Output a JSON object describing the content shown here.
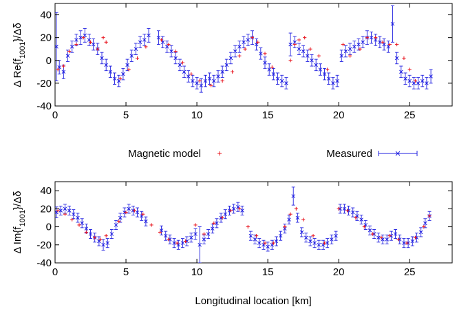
{
  "chart_data": [
    {
      "type": "scatter",
      "panel": "top",
      "ylabel_prefix": "Δ Re{f",
      "ylabel_sub": "1001",
      "ylabel_suffix": "}/Δδ",
      "xlabel": "",
      "xlim": [
        0,
        28
      ],
      "ylim": [
        -40,
        50
      ],
      "xticks": [
        "0",
        "5",
        "10",
        "15",
        "20",
        "25"
      ],
      "yticks": [
        "-40",
        "-20",
        "0",
        "20",
        "40"
      ],
      "series": [
        {
          "name": "Magnetic model",
          "color": "#e8141e",
          "marker": "plus",
          "x": [
            0.2,
            0.6,
            1.0,
            1.5,
            2.0,
            2.5,
            3.0,
            3.4,
            3.6,
            4.6,
            5.2,
            5.8,
            6.4,
            7.5,
            8.0,
            8.5,
            9.0,
            9.6,
            10.2,
            11.0,
            11.8,
            12.5,
            13.0,
            13.4,
            13.9,
            14.3,
            14.8,
            15.3,
            16.6,
            16.9,
            17.2,
            17.6,
            18.0,
            18.6,
            19.2,
            20.3,
            20.8,
            21.5,
            22.0,
            22.6,
            23.1,
            23.6,
            24.1,
            24.6,
            25.0,
            25.4
          ],
          "y": [
            -8,
            -5,
            8,
            14,
            20,
            16,
            10,
            20,
            16,
            -16,
            -8,
            2,
            12,
            18,
            14,
            8,
            -2,
            -12,
            -18,
            -22,
            -18,
            -10,
            4,
            10,
            20,
            16,
            6,
            -6,
            0,
            14,
            18,
            20,
            10,
            4,
            -8,
            14,
            4,
            10,
            20,
            20,
            16,
            14,
            14,
            2,
            -8,
            -18
          ]
        },
        {
          "name": "Measured",
          "color": "#1f1fe0",
          "marker": "cross-errorbar",
          "x": [
            0.1,
            0.3,
            0.6,
            0.9,
            1.2,
            1.5,
            1.8,
            2.1,
            2.4,
            2.7,
            3.0,
            3.3,
            3.6,
            3.9,
            4.2,
            4.5,
            4.8,
            5.1,
            5.4,
            5.7,
            6.0,
            6.3,
            6.6,
            7.3,
            7.6,
            7.9,
            8.2,
            8.5,
            8.8,
            9.1,
            9.4,
            9.7,
            10.0,
            10.3,
            10.6,
            10.9,
            11.2,
            11.5,
            11.8,
            12.1,
            12.4,
            12.7,
            13.0,
            13.3,
            13.6,
            13.9,
            14.2,
            14.5,
            14.8,
            15.1,
            15.4,
            15.7,
            16.0,
            16.3,
            16.6,
            16.9,
            17.2,
            17.5,
            17.8,
            18.1,
            18.4,
            18.7,
            19.0,
            19.3,
            19.6,
            19.9,
            20.2,
            20.5,
            20.8,
            21.1,
            21.4,
            21.7,
            22.0,
            22.3,
            22.6,
            22.9,
            23.2,
            23.5,
            23.8,
            24.1,
            24.4,
            24.7,
            25.0,
            25.3,
            25.6,
            25.9,
            26.2,
            26.5
          ],
          "y": [
            12,
            -6,
            -10,
            4,
            12,
            18,
            20,
            22,
            18,
            14,
            10,
            2,
            -4,
            -10,
            -16,
            -18,
            -12,
            -4,
            4,
            10,
            16,
            18,
            22,
            20,
            16,
            12,
            8,
            2,
            -4,
            -10,
            -14,
            -18,
            -20,
            -22,
            -18,
            -16,
            -18,
            -14,
            -10,
            -4,
            2,
            8,
            12,
            16,
            18,
            20,
            14,
            6,
            -2,
            -8,
            -12,
            -16,
            -18,
            -20,
            14,
            16,
            10,
            8,
            4,
            0,
            -4,
            -8,
            -12,
            -16,
            -20,
            -18,
            4,
            8,
            10,
            12,
            14,
            16,
            20,
            20,
            18,
            16,
            14,
            12,
            32,
            2,
            -10,
            -16,
            -18,
            -20,
            -20,
            -18,
            -20,
            -14
          ],
          "err": [
            30,
            6,
            6,
            5,
            5,
            5,
            6,
            6,
            5,
            5,
            5,
            5,
            5,
            5,
            5,
            5,
            5,
            5,
            5,
            5,
            5,
            5,
            6,
            6,
            5,
            5,
            5,
            5,
            5,
            5,
            5,
            5,
            5,
            6,
            5,
            5,
            5,
            5,
            5,
            5,
            5,
            5,
            5,
            5,
            5,
            6,
            5,
            5,
            5,
            5,
            5,
            5,
            5,
            5,
            10,
            5,
            5,
            5,
            5,
            5,
            5,
            5,
            5,
            5,
            5,
            5,
            5,
            5,
            5,
            5,
            5,
            5,
            6,
            5,
            5,
            5,
            5,
            5,
            16,
            5,
            5,
            5,
            5,
            5,
            5,
            5,
            5,
            6
          ]
        }
      ]
    },
    {
      "type": "scatter",
      "panel": "bottom",
      "ylabel_prefix": "Δ Im{f",
      "ylabel_sub": "1001",
      "ylabel_suffix": "}/Δδ",
      "xlabel": "Longitudinal location [km]",
      "xlim": [
        0,
        28
      ],
      "ylim": [
        -40,
        50
      ],
      "xticks": [
        "0",
        "5",
        "10",
        "15",
        "20",
        "25"
      ],
      "yticks": [
        "-40",
        "-20",
        "0",
        "20",
        "40"
      ],
      "series": [
        {
          "name": "Magnetic model",
          "color": "#e8141e",
          "marker": "plus",
          "x": [
            0.2,
            0.7,
            1.2,
            1.7,
            2.2,
            2.8,
            3.2,
            3.6,
            4.5,
            5.0,
            5.6,
            6.2,
            6.8,
            7.4,
            8.0,
            8.6,
            9.2,
            9.9,
            10.5,
            11.2,
            11.8,
            12.4,
            13.0,
            13.6,
            14.2,
            14.8,
            15.4,
            16.2,
            16.6,
            17.0,
            17.5,
            18.2,
            19.0,
            20.0,
            20.6,
            21.2,
            21.8,
            22.4,
            23.0,
            23.6,
            24.2,
            24.8,
            25.4,
            26.0,
            26.4
          ],
          "y": [
            18,
            14,
            8,
            2,
            -6,
            -12,
            -14,
            -10,
            6,
            16,
            18,
            14,
            2,
            -6,
            -14,
            -18,
            -16,
            2,
            -8,
            4,
            10,
            18,
            20,
            0,
            -10,
            -18,
            -18,
            0,
            14,
            20,
            8,
            -10,
            -18,
            20,
            18,
            10,
            0,
            -8,
            -12,
            -10,
            -14,
            -18,
            -12,
            0,
            12
          ]
        },
        {
          "name": "Measured",
          "color": "#1f1fe0",
          "marker": "cross-errorbar",
          "x": [
            0.1,
            0.4,
            0.7,
            1.0,
            1.3,
            1.6,
            1.9,
            2.2,
            2.5,
            2.8,
            3.1,
            3.4,
            3.7,
            4.0,
            4.3,
            4.6,
            4.9,
            5.2,
            5.5,
            5.8,
            6.1,
            6.4,
            7.5,
            7.8,
            8.1,
            8.4,
            8.7,
            9.0,
            9.3,
            9.6,
            9.9,
            10.2,
            10.5,
            10.8,
            11.1,
            11.4,
            11.7,
            12.0,
            12.3,
            12.6,
            12.9,
            13.2,
            13.8,
            14.1,
            14.4,
            14.7,
            15.0,
            15.3,
            15.6,
            15.9,
            16.2,
            16.5,
            16.8,
            17.1,
            17.4,
            17.7,
            18.0,
            18.3,
            18.6,
            18.9,
            19.2,
            19.5,
            19.8,
            20.1,
            20.4,
            20.7,
            21.0,
            21.3,
            21.6,
            21.9,
            22.2,
            22.5,
            22.8,
            23.1,
            23.4,
            23.7,
            24.0,
            24.3,
            24.6,
            24.9,
            25.2,
            25.5,
            25.8,
            26.1,
            26.4
          ],
          "y": [
            16,
            18,
            20,
            18,
            14,
            10,
            4,
            -2,
            -8,
            -12,
            -16,
            -20,
            -18,
            -8,
            2,
            10,
            16,
            20,
            18,
            16,
            12,
            6,
            -4,
            -10,
            -14,
            -18,
            -20,
            -18,
            -16,
            -12,
            -8,
            -20,
            -14,
            -8,
            -2,
            4,
            10,
            14,
            18,
            20,
            22,
            18,
            -10,
            -14,
            -18,
            -20,
            -22,
            -20,
            -16,
            -10,
            -2,
            8,
            34,
            10,
            -6,
            -12,
            -16,
            -18,
            -20,
            -20,
            -18,
            -14,
            -10,
            20,
            20,
            18,
            16,
            12,
            8,
            2,
            -4,
            -8,
            -12,
            -14,
            -14,
            -10,
            -8,
            -14,
            -18,
            -18,
            -16,
            -12,
            -6,
            4,
            12
          ],
          "err": [
            6,
            5,
            5,
            5,
            5,
            5,
            5,
            5,
            5,
            5,
            5,
            6,
            5,
            5,
            5,
            5,
            5,
            5,
            5,
            5,
            5,
            5,
            5,
            5,
            5,
            5,
            5,
            5,
            5,
            5,
            6,
            20,
            5,
            5,
            5,
            5,
            5,
            5,
            5,
            5,
            5,
            5,
            5,
            5,
            5,
            5,
            5,
            5,
            5,
            5,
            5,
            5,
            10,
            5,
            5,
            5,
            5,
            5,
            5,
            5,
            5,
            5,
            5,
            5,
            5,
            5,
            5,
            5,
            5,
            5,
            5,
            5,
            5,
            5,
            5,
            5,
            5,
            5,
            5,
            5,
            5,
            5,
            5,
            5,
            5
          ]
        }
      ]
    }
  ],
  "legend": {
    "placement": "between-panels",
    "items": [
      {
        "label": "Magnetic model",
        "color": "#e8141e",
        "marker": "plus"
      },
      {
        "label": "Measured",
        "color": "#1f1fe0",
        "marker": "cross-errorbar"
      }
    ]
  }
}
